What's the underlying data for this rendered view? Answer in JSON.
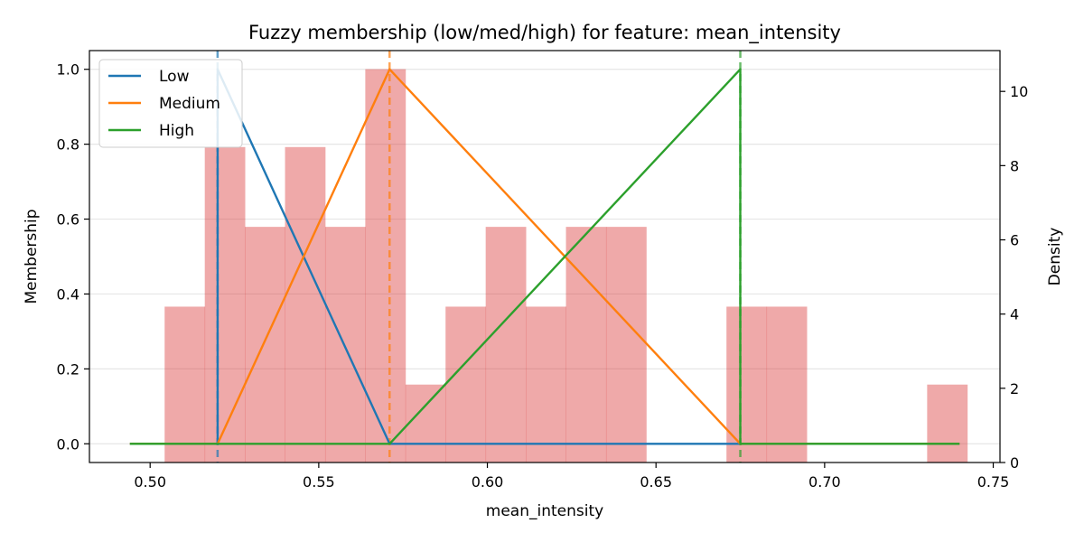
{
  "chart_data": {
    "type": "line",
    "title": "Fuzzy membership (low/med/high) for feature: mean_intensity",
    "xlabel": "mean_intensity",
    "ylabel": "Membership",
    "y2label": "Density",
    "xlim": [
      0.482,
      0.752
    ],
    "ylim": [
      -0.05,
      1.05
    ],
    "y2lim": [
      0,
      11.1
    ],
    "x_ticks": [
      0.5,
      0.55,
      0.6,
      0.65,
      0.7,
      0.75
    ],
    "x_tick_labels": [
      "0.50",
      "0.55",
      "0.60",
      "0.65",
      "0.70",
      "0.75"
    ],
    "y_ticks": [
      0.0,
      0.2,
      0.4,
      0.6,
      0.8,
      1.0
    ],
    "y_tick_labels": [
      "0.0",
      "0.2",
      "0.4",
      "0.6",
      "0.8",
      "1.0"
    ],
    "y2_ticks": [
      0,
      2,
      4,
      6,
      8,
      10
    ],
    "y2_tick_labels": [
      "0",
      "2",
      "4",
      "6",
      "8",
      "10"
    ],
    "grid": "horizontal",
    "legend_position": "top-left",
    "series": [
      {
        "name": "Low",
        "color": "#1f77b4",
        "x": [
          0.494,
          0.52,
          0.52,
          0.571,
          0.74
        ],
        "y": [
          0,
          0,
          1,
          0,
          0
        ]
      },
      {
        "name": "Medium",
        "color": "#ff7f0e",
        "x": [
          0.494,
          0.52,
          0.571,
          0.675,
          0.74
        ],
        "y": [
          0,
          0,
          1,
          0,
          0
        ]
      },
      {
        "name": "High",
        "color": "#2ca02c",
        "x": [
          0.494,
          0.571,
          0.675,
          0.675,
          0.74
        ],
        "y": [
          0,
          0,
          1,
          0,
          0
        ]
      }
    ],
    "vlines": [
      {
        "x": 0.52,
        "color": "#1f77b4"
      },
      {
        "x": 0.571,
        "color": "#ff7f0e"
      },
      {
        "x": 0.675,
        "color": "#2ca02c"
      }
    ],
    "histogram": {
      "color": "#d62728",
      "opacity": 0.4,
      "bin_edges": [
        0.5043,
        0.5162,
        0.5281,
        0.54,
        0.5519,
        0.5638,
        0.5757,
        0.5876,
        0.5995,
        0.6114,
        0.6233,
        0.6352,
        0.6471,
        0.659,
        0.6709,
        0.6828,
        0.6947,
        0.7066,
        0.7185,
        0.7304,
        0.7423
      ],
      "densities": [
        4.2,
        8.5,
        6.35,
        8.5,
        6.35,
        10.6,
        2.1,
        4.2,
        6.35,
        4.2,
        6.35,
        6.35,
        0,
        0,
        4.2,
        4.2,
        0,
        0,
        0,
        2.1
      ]
    }
  }
}
